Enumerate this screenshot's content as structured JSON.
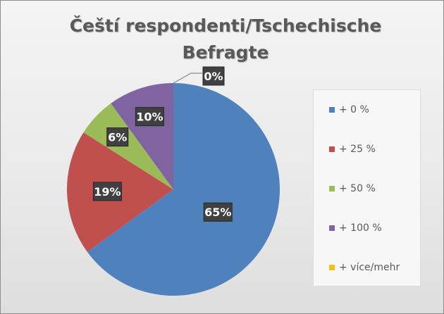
{
  "chart_data": {
    "type": "pie",
    "title": "Čeští respondenti/Tschechische Befragte",
    "categories": [
      "+ 0 %",
      "+ 25 %",
      "+ 50 %",
      "+ 100 %",
      "+ více/mehr"
    ],
    "values": [
      65,
      19,
      6,
      10,
      0
    ],
    "data_labels": [
      "65%",
      "19%",
      "6%",
      "10%",
      "0%"
    ],
    "colors": [
      "#4f81bd",
      "#c0504d",
      "#9bbb59",
      "#8064a2",
      "#f2c314"
    ],
    "legend_position": "right"
  }
}
